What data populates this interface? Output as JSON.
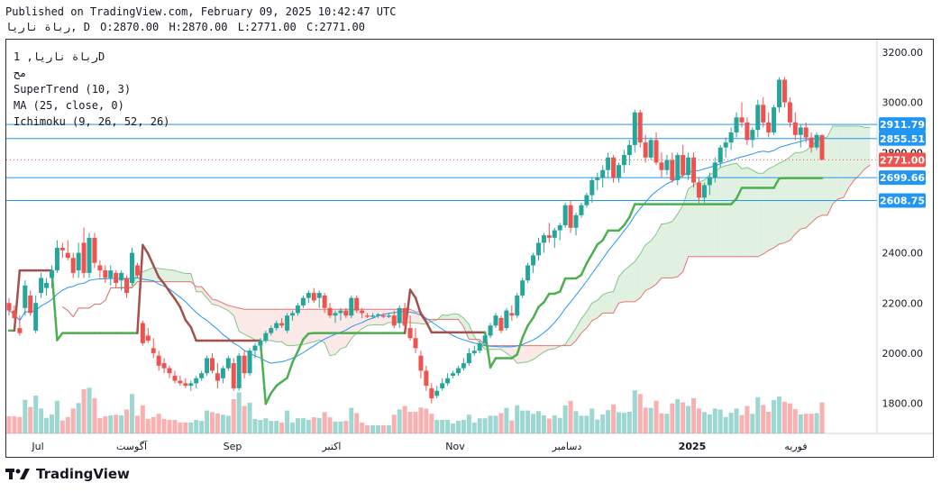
{
  "header": {
    "published": "Published on TradingView.com, February 09, 2025 10:42:47 UTC",
    "symbol": "رباة ناريا, 1D",
    "ohlc": {
      "o": "O:2870.00",
      "h": "H:2870.00",
      "l": "L:2771.00",
      "c": "C:2771.00"
    },
    "prefix": "رباة ناريا, D"
  },
  "legend": {
    "symbol": "رباة ناريا, 1D",
    "exchange": "مح",
    "supertrend": "SuperTrend (10, 3)",
    "ma": "MA (25, close, 0)",
    "ichimoku": "Ichimoku (9, 26, 52, 26)"
  },
  "footer": {
    "brand": "TradingView"
  },
  "colors": {
    "up": "#26a69a",
    "down": "#ef5350",
    "ma": "#2196f3",
    "supertrend_up": "#4caf50",
    "supertrend_down": "#a0524d",
    "cloud_up": "#c8e6c9",
    "cloud_down": "#f8d7d5",
    "hline": "#2196f3",
    "last": "#ef5350"
  },
  "chart_data": {
    "type": "candlestick",
    "y_axis": {
      "ticks": [
        "3200.00",
        "3000.00",
        "2800.00",
        "2600.00",
        "2400.00",
        "2200.00",
        "2000.00",
        "1800.00"
      ],
      "ylim": [
        1680,
        3250
      ]
    },
    "x_axis": {
      "ticks": [
        "Jul",
        "آگوست",
        "Sep",
        "اکتبر",
        "Nov",
        "دسامبر",
        "2025",
        "فوریه"
      ]
    },
    "horizontal_lines": [
      {
        "value": 2911.79,
        "label": "2911.79"
      },
      {
        "value": 2855.51,
        "label": "2855.51"
      },
      {
        "value": 2699.66,
        "label": "2699.66"
      },
      {
        "value": 2608.75,
        "label": "2608.75"
      }
    ],
    "last_price": {
      "value": 2771.0,
      "label": "2771.00"
    },
    "price_label_partial": "2800.00",
    "candles": [
      [
        2200,
        2220,
        2150,
        2170
      ],
      [
        2170,
        2190,
        2120,
        2140
      ],
      [
        2100,
        2150,
        2070,
        2080
      ],
      [
        2180,
        2290,
        2150,
        2270
      ],
      [
        2230,
        2250,
        2150,
        2160
      ],
      [
        2090,
        2230,
        2080,
        2200
      ],
      [
        2240,
        2320,
        2220,
        2300
      ],
      [
        2260,
        2300,
        2230,
        2280
      ],
      [
        2300,
        2350,
        2260,
        2330
      ],
      [
        2330,
        2450,
        2320,
        2420
      ],
      [
        2420,
        2440,
        2380,
        2410
      ],
      [
        2400,
        2450,
        2370,
        2380
      ],
      [
        2380,
        2400,
        2300,
        2320
      ],
      [
        2330,
        2440,
        2300,
        2400
      ],
      [
        2440,
        2500,
        2300,
        2320
      ],
      [
        2320,
        2480,
        2300,
        2460
      ],
      [
        2460,
        2480,
        2340,
        2360
      ],
      [
        2350,
        2370,
        2300,
        2330
      ],
      [
        2330,
        2350,
        2280,
        2300
      ],
      [
        2300,
        2350,
        2270,
        2330
      ],
      [
        2320,
        2330,
        2260,
        2280
      ],
      [
        2290,
        2330,
        2250,
        2320
      ],
      [
        2300,
        2310,
        2220,
        2240
      ],
      [
        2280,
        2420,
        2270,
        2400
      ],
      [
        2350,
        2360,
        2300,
        2310
      ],
      [
        2120,
        2130,
        2030,
        2040
      ],
      [
        2070,
        2100,
        2040,
        2050
      ],
      [
        2020,
        2060,
        1980,
        2000
      ],
      [
        1990,
        2010,
        1930,
        1950
      ],
      [
        1960,
        1980,
        1920,
        1940
      ],
      [
        1940,
        1950,
        1900,
        1920
      ],
      [
        1910,
        1930,
        1880,
        1890
      ],
      [
        1890,
        1910,
        1870,
        1880
      ],
      [
        1880,
        1900,
        1860,
        1870
      ],
      [
        1870,
        1890,
        1850,
        1880
      ],
      [
        1880,
        1910,
        1860,
        1900
      ],
      [
        1900,
        1930,
        1890,
        1920
      ],
      [
        1920,
        1990,
        1910,
        1980
      ],
      [
        1980,
        2000,
        1920,
        1930
      ],
      [
        1920,
        1960,
        1860,
        1890
      ],
      [
        1900,
        1950,
        1880,
        1940
      ],
      [
        1940,
        1990,
        1930,
        1980
      ],
      [
        1960,
        1980,
        1850,
        1860
      ],
      [
        1860,
        2000,
        1850,
        1990
      ],
      [
        1990,
        2010,
        1900,
        1920
      ],
      [
        1920,
        2020,
        1910,
        2010
      ],
      [
        2010,
        2040,
        1980,
        2030
      ],
      [
        2030,
        2060,
        2010,
        2050
      ],
      [
        2050,
        2090,
        2040,
        2080
      ],
      [
        2080,
        2110,
        2070,
        2100
      ],
      [
        2100,
        2130,
        2090,
        2120
      ],
      [
        2120,
        2140,
        2100,
        2110
      ],
      [
        2090,
        2160,
        2080,
        2150
      ],
      [
        2150,
        2170,
        2130,
        2160
      ],
      [
        2160,
        2200,
        2150,
        2190
      ],
      [
        2190,
        2230,
        2180,
        2220
      ],
      [
        2220,
        2250,
        2200,
        2240
      ],
      [
        2240,
        2260,
        2200,
        2210
      ],
      [
        2220,
        2250,
        2180,
        2240
      ],
      [
        2230,
        2240,
        2160,
        2180
      ],
      [
        2180,
        2200,
        2140,
        2150
      ],
      [
        2150,
        2170,
        2120,
        2160
      ],
      [
        2160,
        2180,
        2130,
        2170
      ],
      [
        2170,
        2180,
        2140,
        2150
      ],
      [
        2150,
        2230,
        2140,
        2220
      ],
      [
        2220,
        2230,
        2160,
        2170
      ],
      [
        2170,
        2180,
        2140,
        2160
      ],
      [
        2150,
        2160,
        2140,
        2145
      ],
      [
        2145,
        2160,
        2140,
        2150
      ],
      [
        2150,
        2160,
        2140,
        2155
      ],
      [
        2150,
        2160,
        2140,
        2145
      ],
      [
        2145,
        2160,
        2140,
        2150
      ],
      [
        2150,
        2170,
        2100,
        2110
      ],
      [
        2120,
        2190,
        2100,
        2180
      ],
      [
        2180,
        2200,
        2090,
        2110
      ],
      [
        2100,
        2150,
        2050,
        2060
      ],
      [
        2060,
        2100,
        2000,
        2020
      ],
      [
        1990,
        2010,
        1900,
        1930
      ],
      [
        1930,
        1950,
        1850,
        1870
      ],
      [
        1860,
        1880,
        1800,
        1820
      ],
      [
        1830,
        1870,
        1820,
        1850
      ],
      [
        1860,
        1900,
        1850,
        1880
      ],
      [
        1880,
        1920,
        1870,
        1900
      ],
      [
        1910,
        1930,
        1900,
        1920
      ],
      [
        1920,
        1950,
        1910,
        1940
      ],
      [
        1940,
        1980,
        1930,
        1960
      ],
      [
        1960,
        2020,
        1950,
        2000
      ],
      [
        2000,
        2030,
        1990,
        2010
      ],
      [
        2010,
        2050,
        2000,
        2040
      ],
      [
        2040,
        2080,
        2030,
        2070
      ],
      [
        2070,
        2120,
        2060,
        2110
      ],
      [
        2110,
        2160,
        2100,
        2150
      ],
      [
        2140,
        2150,
        2080,
        2090
      ],
      [
        2100,
        2180,
        2090,
        2170
      ],
      [
        2160,
        2190,
        2130,
        2150
      ],
      [
        2150,
        2240,
        2140,
        2230
      ],
      [
        2230,
        2300,
        2220,
        2290
      ],
      [
        2290,
        2360,
        2280,
        2350
      ],
      [
        2350,
        2400,
        2320,
        2390
      ],
      [
        2390,
        2460,
        2370,
        2440
      ],
      [
        2440,
        2480,
        2400,
        2470
      ],
      [
        2470,
        2520,
        2440,
        2460
      ],
      [
        2460,
        2500,
        2420,
        2490
      ],
      [
        2490,
        2520,
        2450,
        2510
      ],
      [
        2510,
        2600,
        2500,
        2590
      ],
      [
        2590,
        2610,
        2480,
        2500
      ],
      [
        2500,
        2560,
        2470,
        2550
      ],
      [
        2550,
        2600,
        2540,
        2590
      ],
      [
        2590,
        2640,
        2580,
        2630
      ],
      [
        2630,
        2700,
        2600,
        2690
      ],
      [
        2690,
        2720,
        2650,
        2700
      ],
      [
        2700,
        2750,
        2660,
        2730
      ],
      [
        2730,
        2800,
        2700,
        2780
      ],
      [
        2780,
        2790,
        2680,
        2700
      ],
      [
        2700,
        2760,
        2680,
        2750
      ],
      [
        2750,
        2810,
        2720,
        2790
      ],
      [
        2790,
        2850,
        2750,
        2830
      ],
      [
        2830,
        2970,
        2800,
        2960
      ],
      [
        2960,
        2970,
        2820,
        2840
      ],
      [
        2840,
        2870,
        2760,
        2780
      ],
      [
        2780,
        2860,
        2770,
        2850
      ],
      [
        2850,
        2880,
        2750,
        2760
      ],
      [
        2760,
        2800,
        2700,
        2730
      ],
      [
        2730,
        2790,
        2710,
        2770
      ],
      [
        2770,
        2800,
        2680,
        2690
      ],
      [
        2690,
        2800,
        2670,
        2790
      ],
      [
        2790,
        2830,
        2700,
        2710
      ],
      [
        2710,
        2800,
        2690,
        2780
      ],
      [
        2780,
        2800,
        2660,
        2680
      ],
      [
        2680,
        2700,
        2600,
        2620
      ],
      [
        2620,
        2680,
        2600,
        2670
      ],
      [
        2670,
        2720,
        2630,
        2700
      ],
      [
        2700,
        2780,
        2680,
        2760
      ],
      [
        2760,
        2830,
        2740,
        2820
      ],
      [
        2820,
        2860,
        2780,
        2840
      ],
      [
        2840,
        2900,
        2810,
        2880
      ],
      [
        2880,
        2960,
        2860,
        2940
      ],
      [
        2940,
        3000,
        2900,
        2920
      ],
      [
        2920,
        2940,
        2830,
        2850
      ],
      [
        2850,
        2900,
        2820,
        2890
      ],
      [
        2890,
        3010,
        2860,
        2990
      ],
      [
        2990,
        3020,
        2900,
        2920
      ],
      [
        2920,
        2960,
        2860,
        2880
      ],
      [
        2880,
        2990,
        2870,
        2980
      ],
      [
        2980,
        3100,
        2960,
        3090
      ],
      [
        3090,
        3100,
        2980,
        3000
      ],
      [
        3000,
        3020,
        2900,
        2920
      ],
      [
        2920,
        2960,
        2850,
        2870
      ],
      [
        2870,
        2910,
        2820,
        2900
      ],
      [
        2900,
        2920,
        2840,
        2860
      ],
      [
        2860,
        2880,
        2800,
        2820
      ],
      [
        2820,
        2880,
        2810,
        2870
      ],
      [
        2870,
        2870,
        2771,
        2771
      ]
    ],
    "series": [
      {
        "name": "MA (25, close, 0)"
      },
      {
        "name": "SuperTrend (10, 3)"
      },
      {
        "name": "Ichimoku (9, 26, 52, 26)"
      }
    ]
  }
}
